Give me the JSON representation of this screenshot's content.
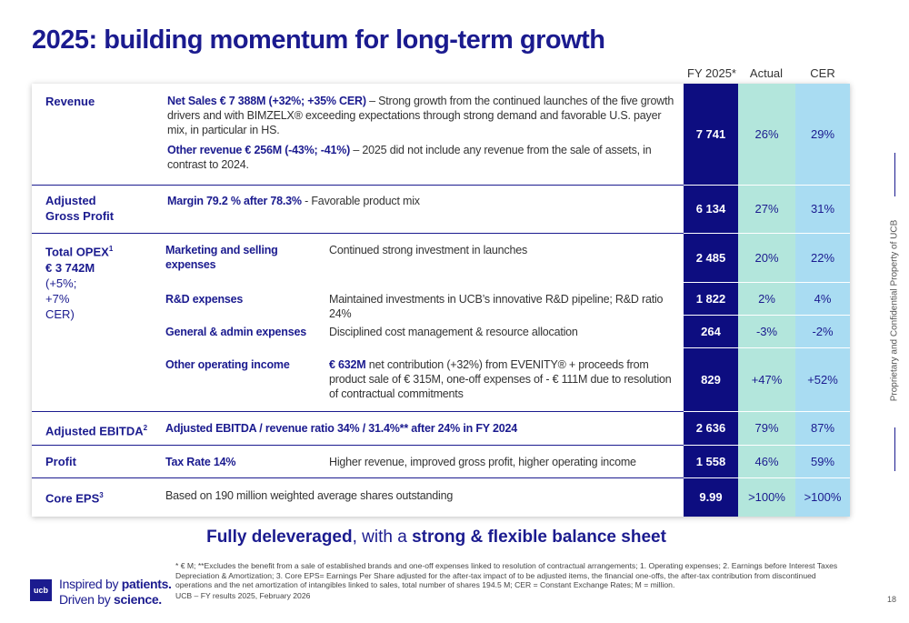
{
  "title": "2025: building momentum for long-term growth",
  "table": {
    "headers": [
      "FY 2025*",
      "Actual",
      "CER"
    ],
    "rows": [
      {
        "label": "Revenue",
        "sales_bold": "Net Sales € 7 388M (+32%; +35% CER)",
        "sales_text": "– Strong growth from the continued launches of the five growth drivers and with BIMZELX® exceeding expectations through strong demand and favorable U.S. payer mix, in particular in HS.",
        "other_bold": "Other revenue € 256M (-43%; -41%)",
        "other_text": "– 2025 did not include any revenue from the sale of assets, in contrast to 2024.",
        "values": [
          "7 741",
          "26%",
          "29%"
        ]
      },
      {
        "label": "Adjusted Gross Profit",
        "desc_bold": "Margin 79.2 % after 78.3%",
        "desc": "- Favorable product mix",
        "values": [
          "6 134",
          "27%",
          "31%"
        ]
      },
      {
        "label": "Total OPEX",
        "label_sup": "1",
        "amount": "€ 3 742M",
        "change": "(+5%; +7% CER)",
        "items": [
          {
            "name": "Marketing and selling expenses",
            "desc": "Continued strong investment in launches",
            "values": [
              "2 485",
              "20%",
              "22%"
            ]
          },
          {
            "name": "R&D expenses",
            "desc": "Maintained investments in UCB’s innovative R&D pipeline; R&D ratio 24%",
            "values": [
              "1 822",
              "2%",
              "4%"
            ]
          },
          {
            "name": "General & admin expenses",
            "desc": "Disciplined cost management & resource allocation",
            "values": [
              "264",
              "-3%",
              "-2%"
            ]
          },
          {
            "name": "Other operating income",
            "desc_bold": "€ 632M",
            "desc": "net contribution (+32%) from EVENITY® + proceeds from product sale of € 315M, one-off expenses of - € 111M due to resolution of contractual commitments",
            "values": [
              "829",
              "+47%",
              "+52%"
            ]
          }
        ]
      },
      {
        "label": "Adjusted EBITDA",
        "label_sup": "2",
        "desc_bold": "Adjusted EBITDA / revenue ratio 34% / 31.4%** after 24% in FY 2024",
        "values": [
          "2 636",
          "79%",
          "87%"
        ]
      },
      {
        "label": "Profit",
        "name": "Tax Rate 14%",
        "desc": "Higher revenue, improved gross profit, higher operating income",
        "values": [
          "1 558",
          "46%",
          "59%"
        ]
      },
      {
        "label": "Core EPS",
        "label_sup": "3",
        "desc": "Based on 190 million weighted average shares outstanding",
        "values": [
          "9.99",
          ">100%",
          ">100%"
        ]
      }
    ]
  },
  "highlight": {
    "bold1": "Fully deleveraged",
    "text": ", with a",
    "bold2": "strong & flexible balance sheet"
  },
  "footnote": "* € M; **Excludes the benefit from a sale of established brands and one-off expenses linked to resolution of contractual arrangements; 1. Operating expenses; 2. Earnings before Interest Taxes Depreciation & Amortization; 3. Core EPS= Earnings Per Share adjusted for the after-tax impact of to be adjusted items, the financial one-offs, the after-tax contribution from discontinued operations and the net amortization of intangibles linked to sales, total number of shares 194.5 M; CER = Constant Exchange Rates; M = million.",
  "source": "UCB – FY results 2025, February 2026",
  "logo": {
    "mark": "ucb",
    "line1": "Inspired by",
    "line1_bold": "patients.",
    "line2": "Driven by",
    "line2_bold": "science."
  },
  "side_text": "Proprietary and Confidential Property of UCB",
  "page_number": "18"
}
